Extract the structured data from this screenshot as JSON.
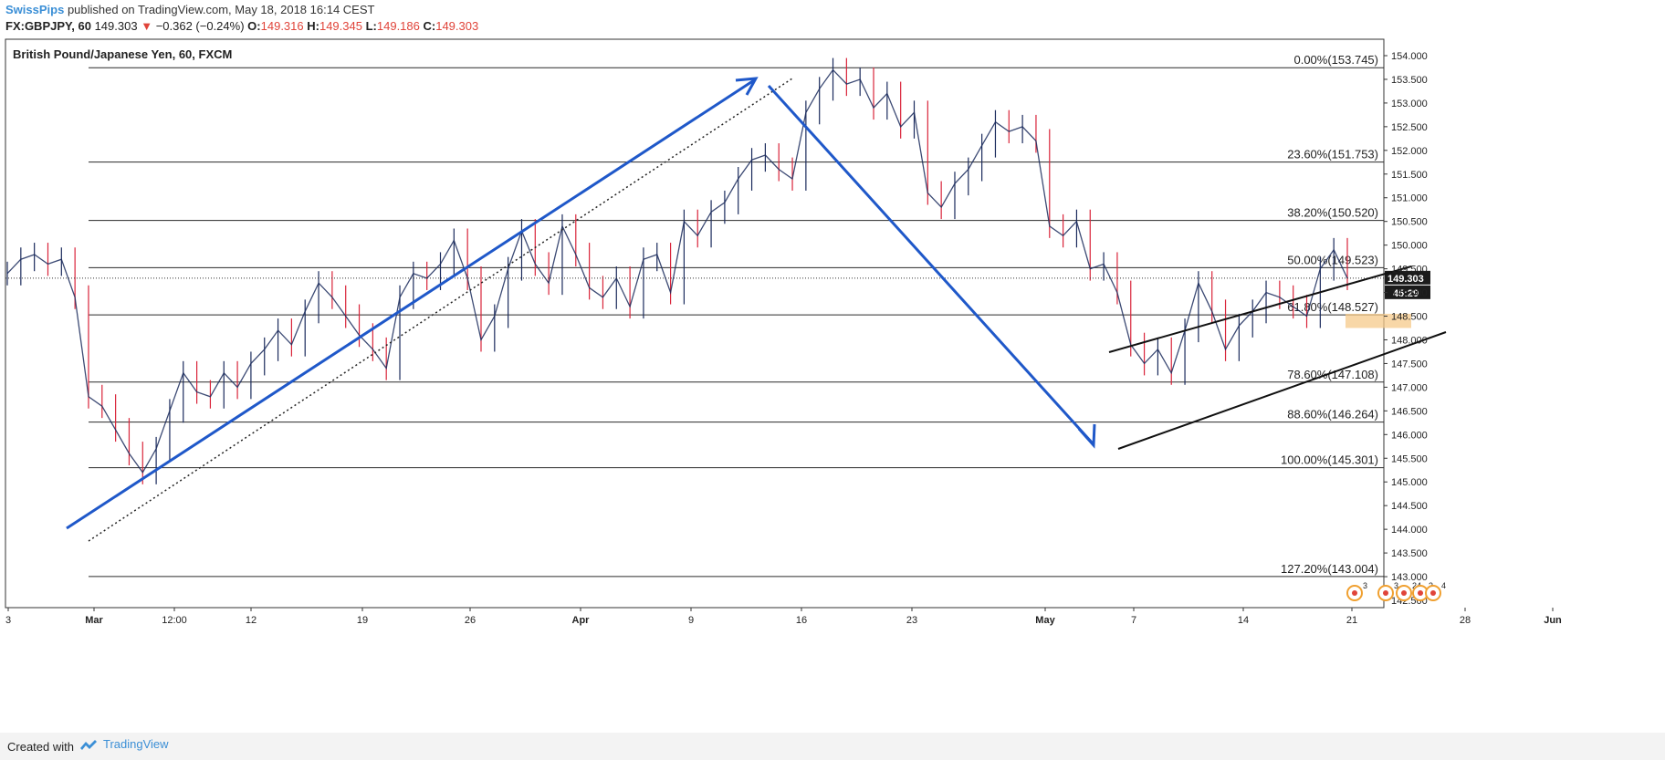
{
  "header": {
    "author": "SwissPips",
    "published_text": "published on TradingView.com, May 18, 2018 16:14 CEST"
  },
  "quote": {
    "symbol": "FX:GBPJPY, 60",
    "last": "149.303",
    "change_arrow": "▼",
    "change": "−0.362 (−0.24%)",
    "o_label": "O:",
    "o": "149.316",
    "h_label": "H:",
    "h": "149.345",
    "l_label": "L:",
    "l": "149.186",
    "c_label": "C:",
    "c": "149.303"
  },
  "chart_data": {
    "type": "line",
    "title": "British Pound/Japanese Yen, 60, FXCM",
    "ylim": [
      142.3,
      154.25
    ],
    "y_ticks": [
      "142.500",
      "143.000",
      "143.500",
      "144.000",
      "144.500",
      "145.000",
      "145.500",
      "146.000",
      "146.500",
      "147.000",
      "147.500",
      "148.000",
      "148.500",
      "149.000",
      "149.500",
      "150.000",
      "150.500",
      "151.000",
      "151.500",
      "152.000",
      "152.500",
      "153.000",
      "153.500",
      "154.000"
    ],
    "x_ticks": [
      "3",
      "Mar",
      "12:00",
      "12",
      "19",
      "26",
      "Apr",
      "9",
      "16",
      "23",
      "May",
      "7",
      "14",
      "21",
      "28",
      "Jun"
    ],
    "price_series": {
      "name": "GBPJPY",
      "color": "#1a2a5c",
      "points": [
        [
          0,
          149.4
        ],
        [
          1,
          149.7
        ],
        [
          2,
          149.8
        ],
        [
          3,
          149.6
        ],
        [
          4,
          149.7
        ],
        [
          5,
          148.9
        ],
        [
          6,
          146.8
        ],
        [
          7,
          146.6
        ],
        [
          8,
          146.1
        ],
        [
          9,
          145.6
        ],
        [
          10,
          145.2
        ],
        [
          11,
          145.7
        ],
        [
          12,
          146.5
        ],
        [
          13,
          147.3
        ],
        [
          14,
          146.9
        ],
        [
          15,
          146.8
        ],
        [
          16,
          147.3
        ],
        [
          17,
          147.0
        ],
        [
          18,
          147.5
        ],
        [
          19,
          147.8
        ],
        [
          20,
          148.2
        ],
        [
          21,
          147.9
        ],
        [
          22,
          148.6
        ],
        [
          23,
          149.2
        ],
        [
          24,
          148.9
        ],
        [
          25,
          148.5
        ],
        [
          26,
          148.1
        ],
        [
          27,
          147.8
        ],
        [
          28,
          147.4
        ],
        [
          29,
          148.9
        ],
        [
          30,
          149.4
        ],
        [
          31,
          149.3
        ],
        [
          32,
          149.6
        ],
        [
          33,
          150.1
        ],
        [
          34,
          149.3
        ],
        [
          35,
          148.0
        ],
        [
          36,
          148.5
        ],
        [
          37,
          149.5
        ],
        [
          38,
          150.3
        ],
        [
          39,
          149.6
        ],
        [
          40,
          149.2
        ],
        [
          41,
          150.4
        ],
        [
          42,
          149.8
        ],
        [
          43,
          149.1
        ],
        [
          44,
          148.9
        ],
        [
          45,
          149.3
        ],
        [
          46,
          148.7
        ],
        [
          47,
          149.7
        ],
        [
          48,
          149.8
        ],
        [
          49,
          149.0
        ],
        [
          50,
          150.5
        ],
        [
          51,
          150.2
        ],
        [
          52,
          150.7
        ],
        [
          53,
          150.9
        ],
        [
          54,
          151.4
        ],
        [
          55,
          151.8
        ],
        [
          56,
          151.9
        ],
        [
          57,
          151.6
        ],
        [
          58,
          151.4
        ],
        [
          59,
          152.8
        ],
        [
          60,
          153.3
        ],
        [
          61,
          153.7
        ],
        [
          62,
          153.4
        ],
        [
          63,
          153.5
        ],
        [
          64,
          152.9
        ],
        [
          65,
          153.2
        ],
        [
          66,
          152.5
        ],
        [
          67,
          152.8
        ],
        [
          68,
          151.1
        ],
        [
          69,
          150.8
        ],
        [
          70,
          151.3
        ],
        [
          71,
          151.6
        ],
        [
          72,
          152.1
        ],
        [
          73,
          152.6
        ],
        [
          74,
          152.4
        ],
        [
          75,
          152.5
        ],
        [
          76,
          152.2
        ],
        [
          77,
          150.4
        ],
        [
          78,
          150.2
        ],
        [
          79,
          150.5
        ],
        [
          80,
          149.5
        ],
        [
          81,
          149.6
        ],
        [
          82,
          149.0
        ],
        [
          83,
          147.9
        ],
        [
          84,
          147.5
        ],
        [
          85,
          147.8
        ],
        [
          86,
          147.3
        ],
        [
          87,
          148.2
        ],
        [
          88,
          149.2
        ],
        [
          89,
          148.6
        ],
        [
          90,
          147.8
        ],
        [
          91,
          148.3
        ],
        [
          92,
          148.6
        ],
        [
          93,
          149.0
        ],
        [
          94,
          148.9
        ],
        [
          95,
          148.7
        ],
        [
          96,
          148.5
        ],
        [
          97,
          149.5
        ],
        [
          98,
          149.9
        ],
        [
          99,
          149.3
        ]
      ]
    },
    "fib_levels": [
      {
        "label": "0.00%(153.745)",
        "value": 153.745
      },
      {
        "label": "23.60%(151.753)",
        "value": 151.753
      },
      {
        "label": "38.20%(150.520)",
        "value": 150.52
      },
      {
        "label": "50.00%(149.523)",
        "value": 149.523
      },
      {
        "label": "61.80%(148.527)",
        "value": 148.527
      },
      {
        "label": "78.60%(147.108)",
        "value": 147.108
      },
      {
        "label": "88.60%(146.264)",
        "value": 146.264
      },
      {
        "label": "100.00%(145.301)",
        "value": 145.301
      },
      {
        "label": "127.20%(143.004)",
        "value": 143.004
      }
    ],
    "last_price_label": "149.303",
    "countdown_label": "45:29",
    "event_markers": [
      "3",
      "3",
      "24",
      "3",
      "4"
    ],
    "colors": {
      "arrow": "#1f58c9",
      "bullish_candle": "#1a2a5c",
      "bearish_candle": "#d9243a",
      "zone": "#f6c98a",
      "price_tag": "#1b1b1b"
    }
  },
  "footer": {
    "created_with": "Created with",
    "brand": "TradingView"
  }
}
